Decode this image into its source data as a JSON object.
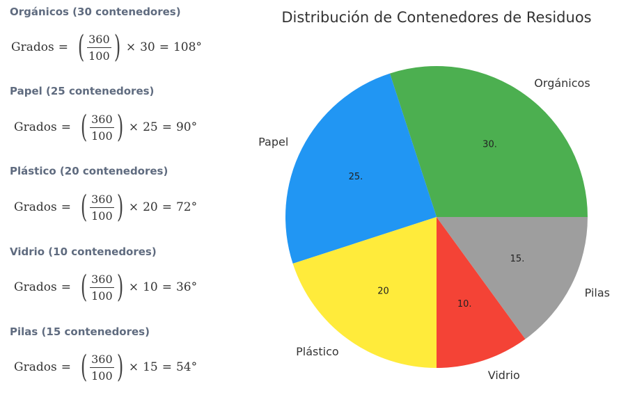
{
  "formulas": [
    {
      "title": "Orgánicos (30 contenedores)",
      "lhs": "Grados",
      "eq": "=",
      "num": "360",
      "den": "100",
      "times": "×",
      "count": "30",
      "result": "108°"
    },
    {
      "title": "Papel (25 contenedores)",
      "lhs": "Grados",
      "eq": "=",
      "num": "360",
      "den": "100",
      "times": "×",
      "count": "25",
      "result": "90°"
    },
    {
      "title": "Plástico (20 contenedores)",
      "lhs": "Grados",
      "eq": "=",
      "num": "360",
      "den": "100",
      "times": "×",
      "count": "20",
      "result": "72°"
    },
    {
      "title": "Vidrio (10 contenedores)",
      "lhs": "Grados",
      "eq": "=",
      "num": "360",
      "den": "100",
      "times": "×",
      "count": "10",
      "result": "36°"
    },
    {
      "title": "Pilas (15 contenedores)",
      "lhs": "Grados",
      "eq": "=",
      "num": "360",
      "den": "100",
      "times": "×",
      "count": "15",
      "result": "54°"
    }
  ],
  "chart_data": {
    "type": "pie",
    "title": "Distribución de Contenedores de Residuos",
    "categories": [
      "Orgánicos",
      "Papel",
      "Plástico",
      "Vidrio",
      "Pilas"
    ],
    "values": [
      30,
      25,
      20,
      10,
      15
    ],
    "data_labels": [
      "30.",
      "25.",
      "20",
      "10.",
      "15."
    ],
    "colors": [
      "#4caf50",
      "#2196f3",
      "#ffeb3b",
      "#f44336",
      "#9e9e9e"
    ],
    "start_angle_deg": 0,
    "direction": "counterclockwise",
    "legend": "none"
  }
}
